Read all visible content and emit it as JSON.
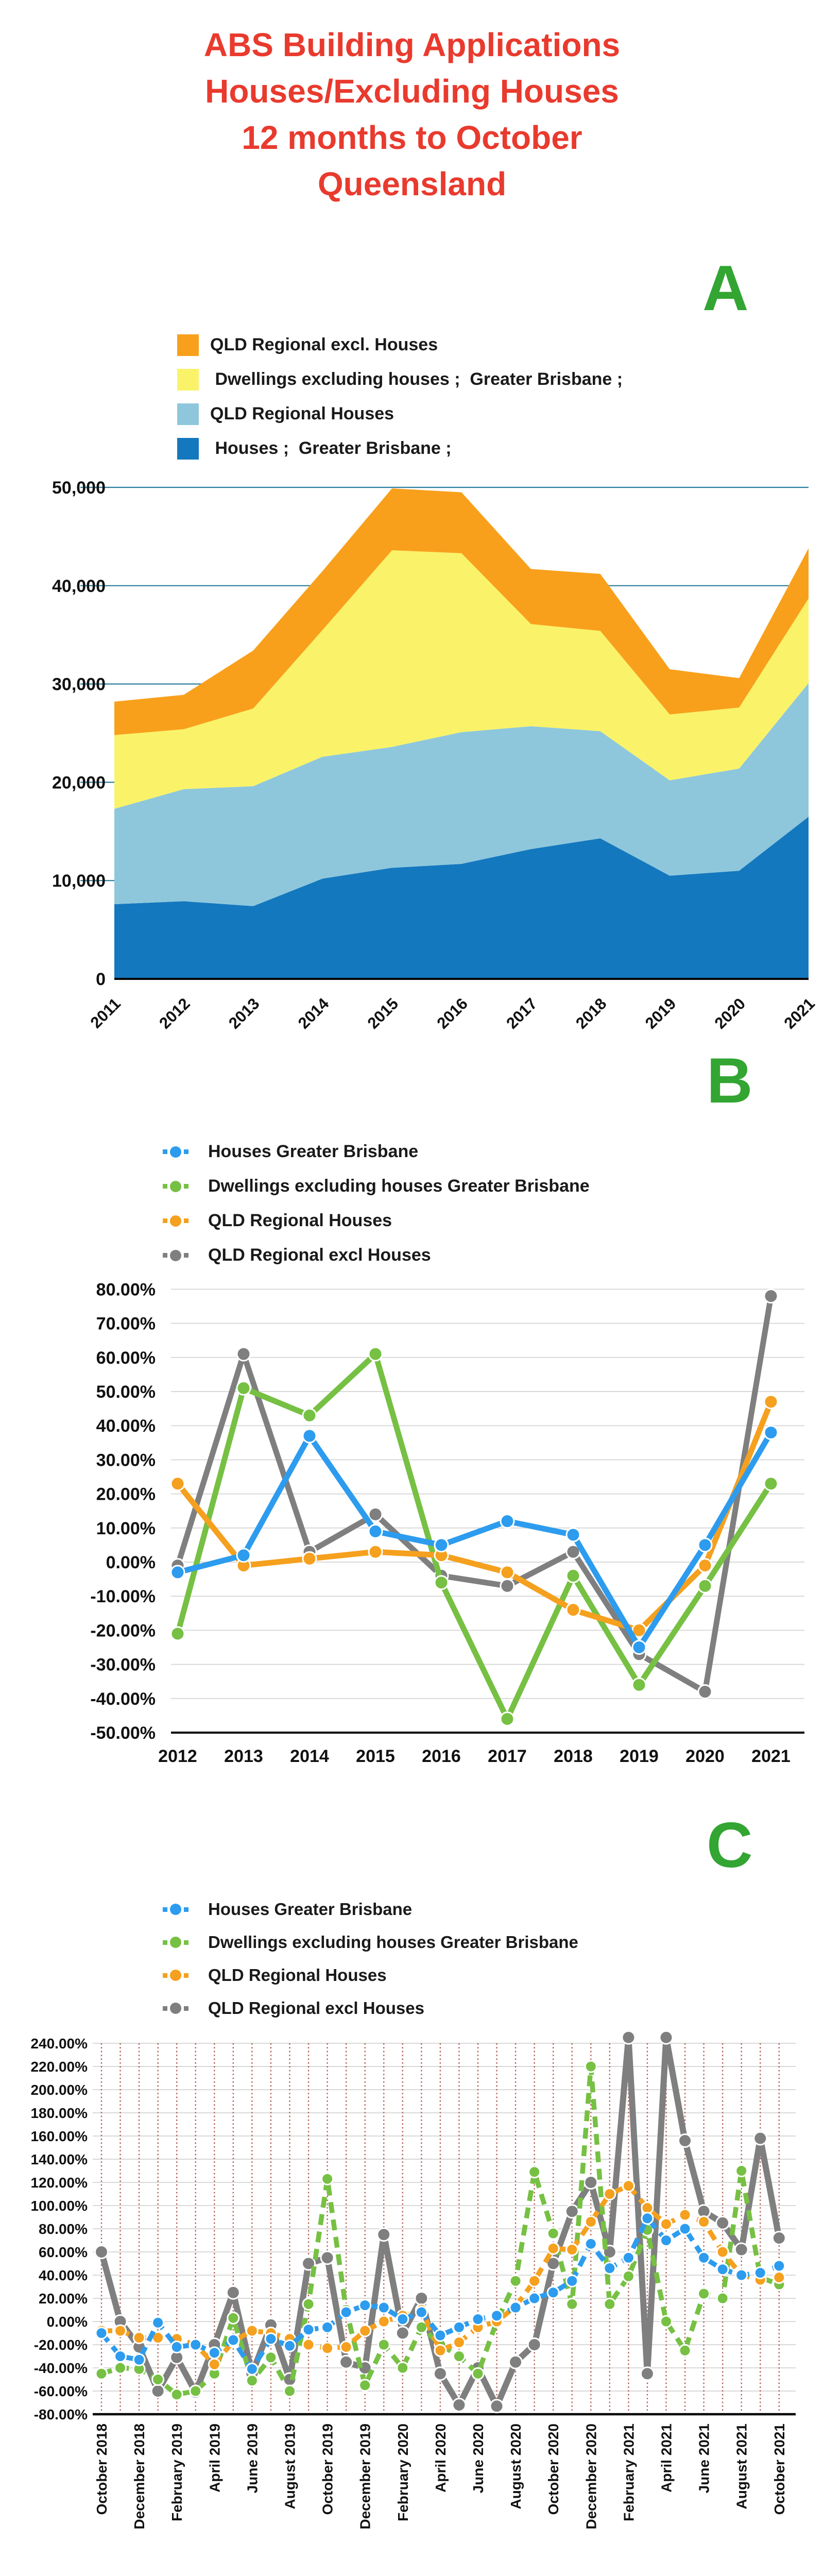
{
  "title": {
    "lines": [
      "ABS Building Applications",
      "Houses/Excluding Houses",
      "12 months to October",
      "Queensland"
    ],
    "color": "#E93A2E"
  },
  "panel_letters": {
    "a": "A",
    "b": "B",
    "c": "C",
    "color": "#33A532"
  },
  "colors": {
    "area_dark_blue": "#1478BE",
    "area_light_blue": "#8EC7DC",
    "area_yellow": "#FAF369",
    "area_orange": "#F8A01C",
    "line_blue": "#2D9CEE",
    "line_green": "#76C043",
    "line_orange": "#F5A01E",
    "line_gray": "#7F7F7F",
    "grid_teal": "#2A7E9E",
    "grid_gray": "#D9D9D9",
    "grid_dotted_red": "#B05A4F",
    "axis_black": "#000000"
  },
  "chart_data": [
    {
      "id": "A",
      "type": "area",
      "stacked": true,
      "title": "ABS Building Applications Houses/Excluding Houses 12 months to October Queensland",
      "categories": [
        2011,
        2012,
        2013,
        2014,
        2015,
        2016,
        2017,
        2018,
        2019,
        2020,
        2021
      ],
      "ylim": [
        0,
        50000
      ],
      "ystep": 10000,
      "yticklabels": [
        "50,000",
        "40,000",
        "30,000",
        "20,000",
        "10,000",
        "0"
      ],
      "legend_position": "top-left",
      "grid": "horizontal",
      "series": [
        {
          "name": "QLD Regional excl. Houses",
          "color": "#F8A01C",
          "stack": 3,
          "values": [
            3400,
            3500,
            5900,
            6000,
            6300,
            6200,
            5600,
            5800,
            4600,
            3000,
            5100
          ]
        },
        {
          "name": " Dwellings excluding houses ;  Greater Brisbane ;",
          "color": "#FAF369",
          "stack": 2,
          "values": [
            7500,
            6100,
            7900,
            12900,
            20000,
            18200,
            10400,
            10200,
            6700,
            6200,
            8600
          ]
        },
        {
          "name": "QLD Regional Houses",
          "color": "#8EC7DC",
          "stack": 1,
          "values": [
            9700,
            11400,
            12200,
            12400,
            12300,
            13400,
            12500,
            10900,
            9700,
            10400,
            13600
          ]
        },
        {
          "name": " Houses ;  Greater Brisbane ;",
          "color": "#1478BE",
          "stack": 0,
          "values": [
            7600,
            7900,
            7400,
            10200,
            11300,
            11700,
            13200,
            14300,
            10500,
            11000,
            16500
          ]
        }
      ]
    },
    {
      "id": "B",
      "type": "line",
      "x": [
        2012,
        2013,
        2014,
        2015,
        2016,
        2017,
        2018,
        2019,
        2020,
        2021
      ],
      "ylim": [
        -50,
        80
      ],
      "ystep": 10,
      "unit": "percent",
      "yticklabels": [
        "80.00%",
        "70.00%",
        "60.00%",
        "50.00%",
        "40.00%",
        "30.00%",
        "20.00%",
        "10.00%",
        "0.00%",
        "-10.00%",
        "-20.00%",
        "-30.00%",
        "-40.00%",
        "-50.00%"
      ],
      "series": [
        {
          "name": "Houses Greater Brisbane",
          "color": "#2D9CEE",
          "values": [
            -3,
            2,
            37,
            9,
            5,
            12,
            8,
            -25,
            5,
            38
          ]
        },
        {
          "name": "Dwellings excluding houses Greater Brisbane",
          "color": "#76C043",
          "values": [
            -21,
            51,
            43,
            61,
            -6,
            -46,
            -4,
            -36,
            -7,
            23
          ]
        },
        {
          "name": "QLD Regional Houses",
          "color": "#F5A01E",
          "values": [
            23,
            -1,
            1,
            3,
            2,
            -3,
            -14,
            -20,
            -1,
            47
          ]
        },
        {
          "name": "QLD Regional excl Houses",
          "color": "#7F7F7F",
          "values": [
            -1,
            61,
            3,
            14,
            -4,
            -7,
            3,
            -27,
            -38,
            78
          ]
        }
      ]
    },
    {
      "id": "C",
      "type": "line",
      "dashed": true,
      "x": [
        "October 2018",
        "November 2018",
        "December 2018",
        "January 2019",
        "February 2019",
        "March 2019",
        "April 2019",
        "May 2019",
        "June 2019",
        "July 2019",
        "August 2019",
        "September 2019",
        "October 2019",
        "November 2019",
        "December 2019",
        "January 2020",
        "February 2020",
        "March 2020",
        "April 2020",
        "May 2020",
        "June 2020",
        "July 2020",
        "August 2020",
        "September 2020",
        "October 2020",
        "November 2020",
        "December 2020",
        "January 2021",
        "February 2021",
        "March 2021",
        "April 2021",
        "May 2021",
        "June 2021",
        "July 2021",
        "August 2021",
        "September 2021",
        "October 2021"
      ],
      "xticklabels": [
        "October 2018",
        "December 2018",
        "February 2019",
        "April 2019",
        "June 2019",
        "August 2019",
        "October 2019",
        "December 2019",
        "February 2020",
        "April 2020",
        "June 2020",
        "August 2020",
        "October 2020",
        "December 2020",
        "February 2021",
        "April 2021",
        "June 2021",
        "August 2021",
        "October 2021"
      ],
      "xtick_every": 2,
      "ylim": [
        -80,
        240
      ],
      "ystep": 20,
      "unit": "percent",
      "yticklabels": [
        "240.00%",
        "220.00%",
        "200.00%",
        "180.00%",
        "160.00%",
        "140.00%",
        "120.00%",
        "100.00%",
        "80.00%",
        "60.00%",
        "40.00%",
        "20.00%",
        "0.00%",
        "-20.00%",
        "-40.00%",
        "-60.00%",
        "-80.00%"
      ],
      "series": [
        {
          "name": "Houses Greater Brisbane",
          "color": "#2D9CEE",
          "values": [
            -10,
            -30,
            -33,
            -1,
            -22,
            -20,
            -27,
            -16,
            -41,
            -15,
            -21,
            -7,
            -5,
            8,
            14,
            12,
            2,
            8,
            -12,
            -5,
            2,
            5,
            12,
            20,
            25,
            35,
            67,
            46,
            55,
            89,
            70,
            80,
            55,
            45,
            40,
            42,
            48
          ]
        },
        {
          "name": "Dwellings excluding houses Greater Brisbane",
          "color": "#76C043",
          "values": [
            -45,
            -40,
            -41,
            -50,
            -63,
            -60,
            -45,
            3,
            -51,
            -31,
            -60,
            15,
            123,
            10,
            -55,
            -20,
            -40,
            -5,
            -20,
            -30,
            -45,
            0,
            35,
            129,
            76,
            15,
            220,
            15,
            39,
            79,
            0,
            -25,
            24,
            20,
            130,
            38,
            32
          ]
        },
        {
          "name": "QLD Regional Houses",
          "color": "#F5A01E",
          "values": [
            -8,
            -8,
            -14,
            -14,
            -15,
            -20,
            -37,
            -17,
            -8,
            -10,
            -15,
            -20,
            -23,
            -22,
            -8,
            0,
            5,
            10,
            -25,
            -18,
            -5,
            0,
            13,
            35,
            63,
            62,
            86,
            110,
            117,
            98,
            84,
            92,
            86,
            60,
            40,
            36,
            38
          ]
        },
        {
          "name": "QLD Regional excl Houses",
          "color": "#7F7F7F",
          "values": [
            60,
            0,
            -22,
            -60,
            -31,
            -61,
            -20,
            25,
            -45,
            -3,
            -50,
            50,
            55,
            -35,
            -40,
            75,
            -10,
            20,
            -45,
            -72,
            -40,
            -73,
            -35,
            -20,
            50,
            95,
            120,
            60,
            245,
            -45,
            245,
            156,
            95,
            85,
            62,
            158,
            72
          ]
        }
      ]
    }
  ]
}
